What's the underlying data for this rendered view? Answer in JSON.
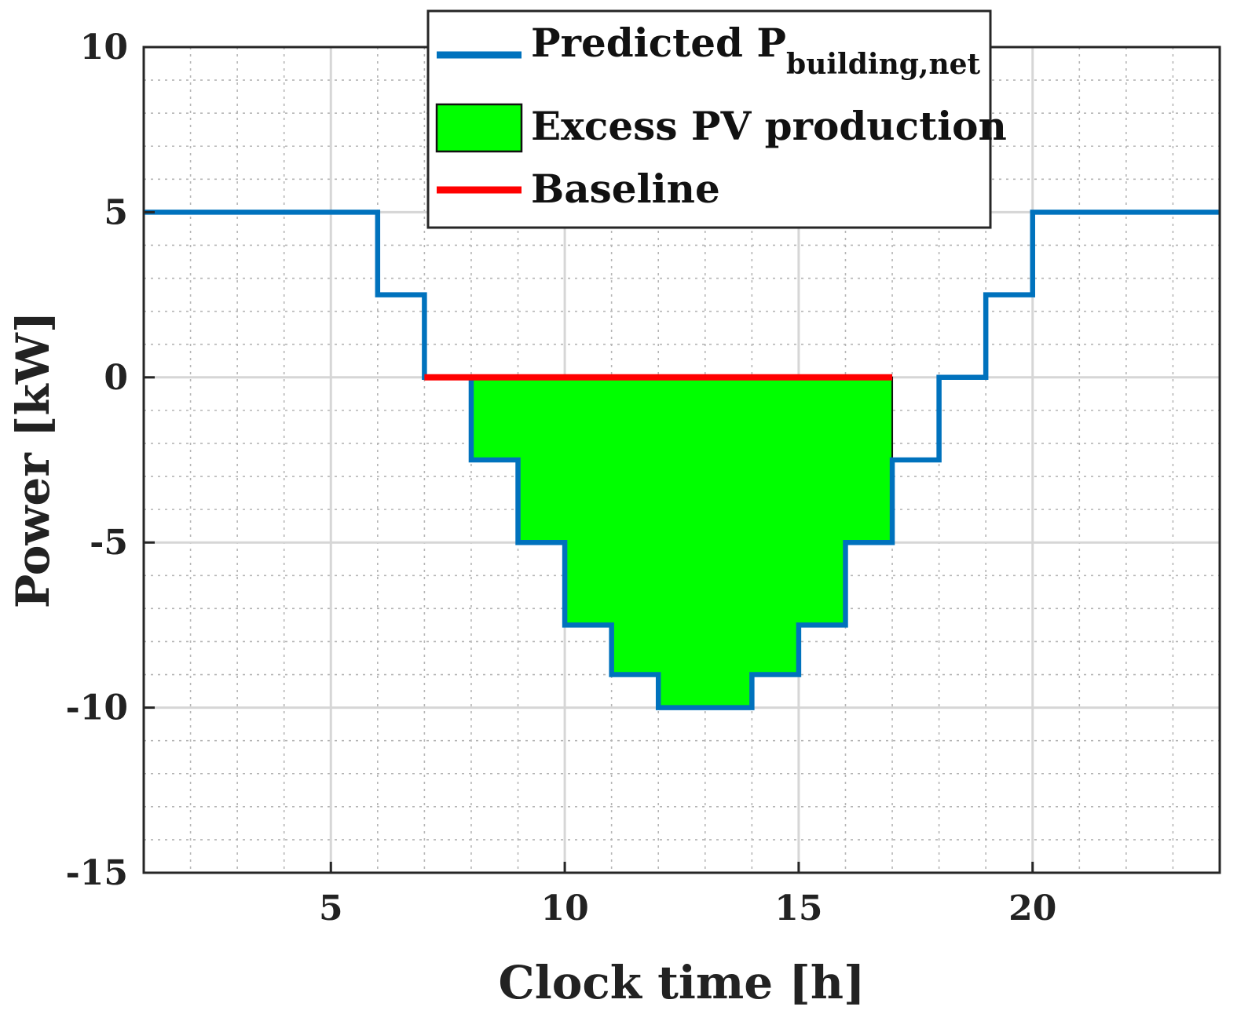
{
  "chart_data": {
    "type": "line",
    "xlabel": "Clock time [h]",
    "ylabel": "Power [kW]",
    "xlim": [
      1,
      24
    ],
    "ylim": [
      -15,
      10
    ],
    "xticks": [
      5,
      10,
      15,
      20
    ],
    "yticks": [
      10,
      5,
      0,
      -5,
      -10,
      -15
    ],
    "grid": true,
    "minor_grid": true,
    "legend_position": "top-center",
    "series": [
      {
        "name": "Predicted P",
        "name_subscript": "building,net",
        "style": "step-line",
        "color": "#0072BD",
        "x": [
          1,
          2,
          3,
          4,
          5,
          6,
          7,
          8,
          9,
          10,
          11,
          12,
          13,
          14,
          15,
          16,
          17,
          18,
          19,
          20,
          21,
          22,
          23,
          24
        ],
        "y": [
          5,
          5,
          5,
          5,
          5,
          2.5,
          0,
          -2.5,
          -5,
          -7.5,
          -9,
          -10,
          -10,
          -9,
          -7.5,
          -5,
          -2.5,
          0,
          2.5,
          5,
          5,
          5,
          5,
          5
        ]
      },
      {
        "name": "Excess PV production",
        "style": "area",
        "color": "#00FF00",
        "x": [
          8,
          9,
          10,
          11,
          12,
          13,
          14,
          15,
          16,
          17
        ],
        "y": [
          -2.5,
          -5,
          -7.5,
          -9,
          -10,
          -10,
          -9,
          -7.5,
          -5,
          0
        ]
      },
      {
        "name": "Baseline",
        "style": "line",
        "color": "#FF0000",
        "x": [
          7,
          17
        ],
        "y": [
          0,
          0
        ]
      }
    ]
  }
}
